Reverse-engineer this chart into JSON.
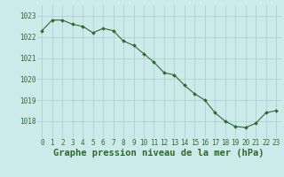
{
  "x": [
    0,
    1,
    2,
    3,
    4,
    5,
    6,
    7,
    8,
    9,
    10,
    11,
    12,
    13,
    14,
    15,
    16,
    17,
    18,
    19,
    20,
    21,
    22,
    23
  ],
  "y": [
    1022.3,
    1022.8,
    1022.8,
    1022.6,
    1022.5,
    1022.2,
    1022.4,
    1022.3,
    1021.8,
    1021.6,
    1021.2,
    1020.8,
    1020.3,
    1020.2,
    1019.7,
    1019.3,
    1019.0,
    1018.4,
    1018.0,
    1017.75,
    1017.7,
    1017.9,
    1018.4,
    1018.5
  ],
  "line_color": "#2d6a2d",
  "marker_color": "#2d6a2d",
  "bg_color": "#cceaea",
  "grid_color": "#aacccc",
  "title": "Graphe pression niveau de la mer (hPa)",
  "ylim_min": 1017.2,
  "ylim_max": 1023.5,
  "yticks": [
    1018,
    1019,
    1020,
    1021,
    1022,
    1023
  ],
  "xticks": [
    0,
    1,
    2,
    3,
    4,
    5,
    6,
    7,
    8,
    9,
    10,
    11,
    12,
    13,
    14,
    15,
    16,
    17,
    18,
    19,
    20,
    21,
    22,
    23
  ],
  "tick_fontsize": 5.5,
  "title_fontsize": 7.5
}
